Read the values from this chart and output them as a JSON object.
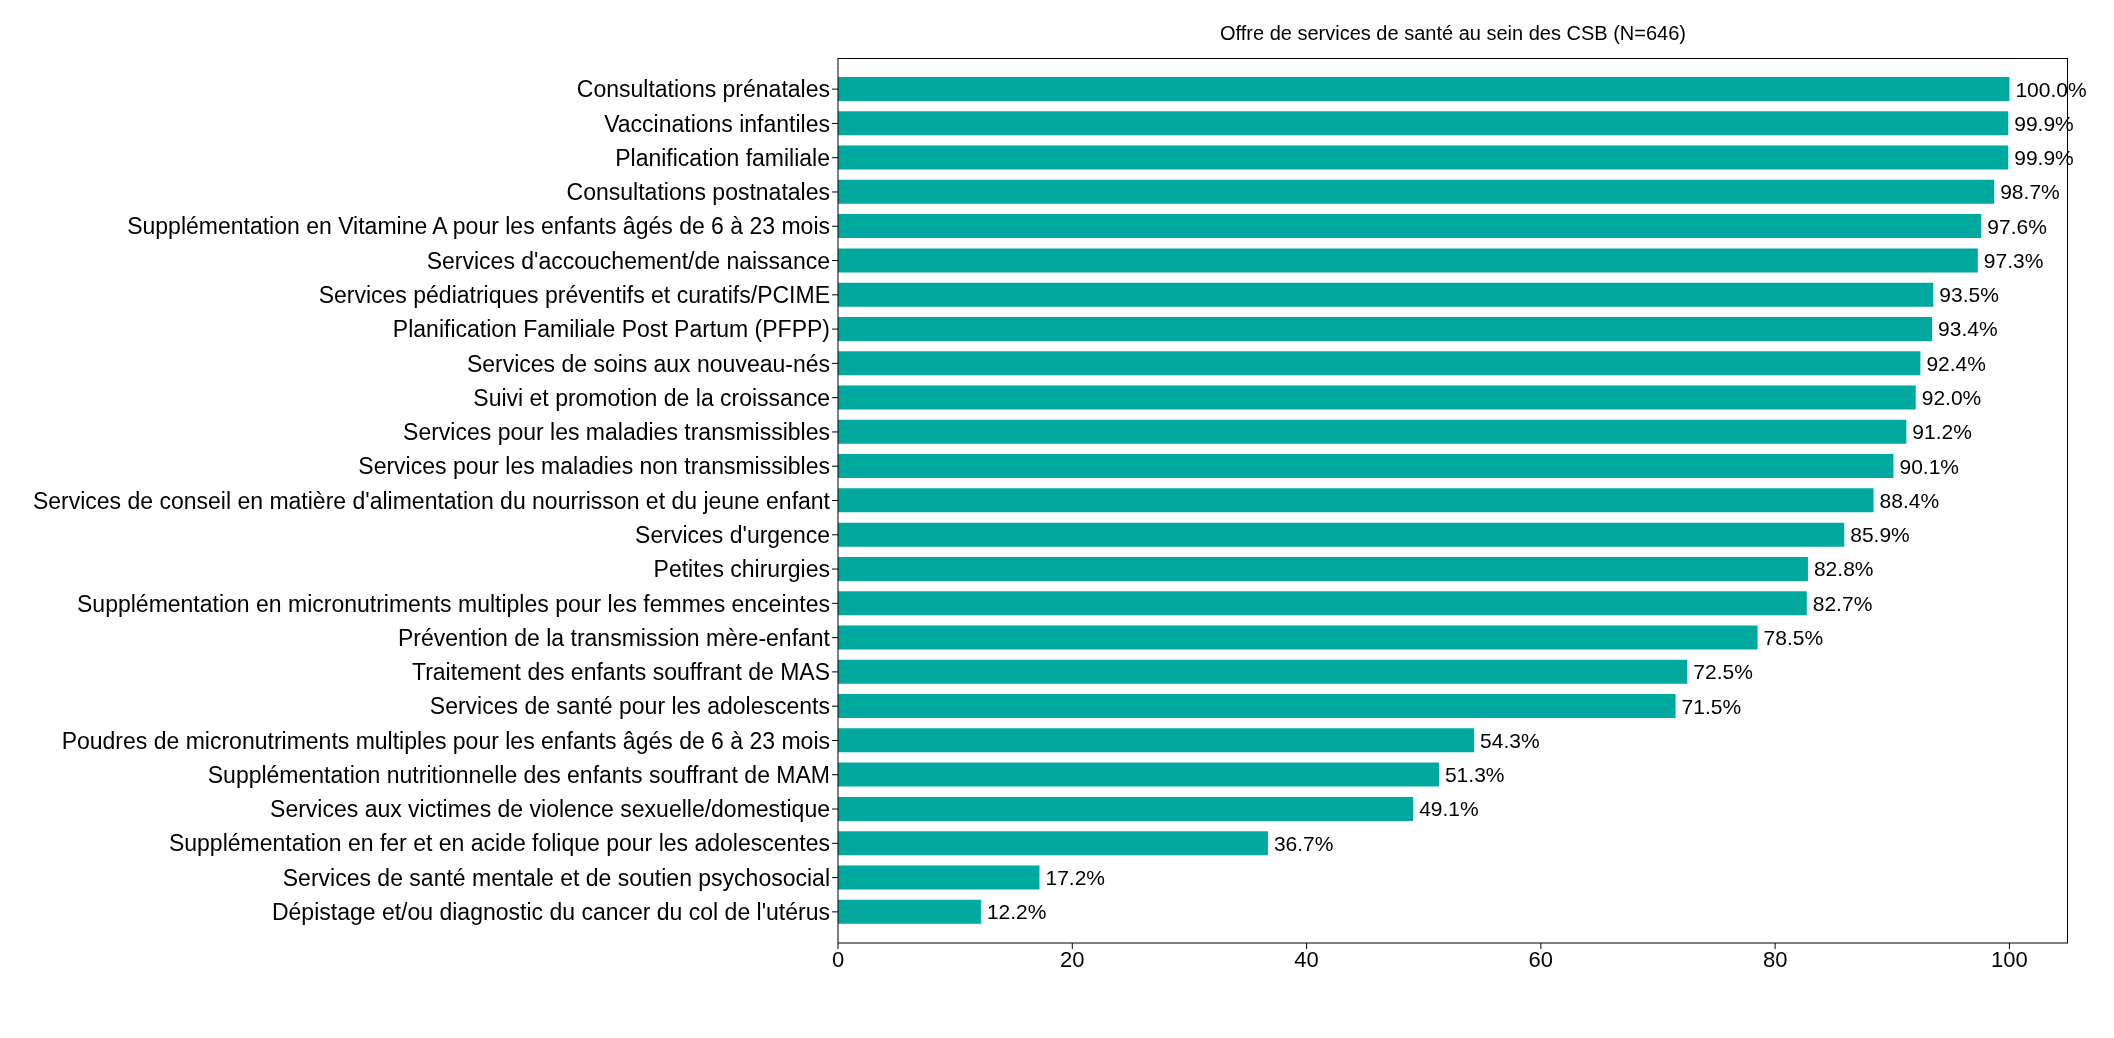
{
  "chart_data": {
    "type": "bar",
    "orientation": "horizontal",
    "title": "Offre de services de santé au sein des CSB (N=646)",
    "categories": [
      "Consultations prénatales",
      "Vaccinations infantiles",
      "Planification familiale",
      "Consultations postnatales",
      "Supplémentation en Vitamine A pour les enfants âgés de 6 à 23 mois",
      "Services d'accouchement/de naissance",
      "Services pédiatriques préventifs et curatifs/PCIME",
      "Planification Familiale Post Partum (PFPP)",
      "Services de soins aux nouveau-nés",
      "Suivi et promotion de la croissance",
      "Services pour les maladies transmissibles",
      "Services pour les maladies non transmissibles",
      "Services de conseil en matière d'alimentation du nourrisson et du jeune enfant",
      "Services d'urgence",
      "Petites chirurgies",
      "Supplémentation en micronutriments multiples pour les femmes enceintes",
      "Prévention de la transmission mère-enfant",
      "Traitement des enfants souffrant de MAS",
      "Services de santé pour les adolescents",
      "Poudres de micronutriments multiples pour les enfants âgés de 6 à 23 mois",
      "Supplémentation nutritionnelle des enfants souffrant de MAM",
      "Services aux victimes de violence sexuelle/domestique",
      "Supplémentation en fer et en acide folique pour les adolescentes",
      "Services de santé mentale et de soutien psychosocial",
      "Dépistage et/ou diagnostic du cancer du col de l'utérus"
    ],
    "values": [
      100.0,
      99.9,
      99.9,
      98.7,
      97.6,
      97.3,
      93.5,
      93.4,
      92.4,
      92.0,
      91.2,
      90.1,
      88.4,
      85.9,
      82.8,
      82.7,
      78.5,
      72.5,
      71.5,
      54.3,
      51.3,
      49.1,
      36.7,
      17.2,
      12.2
    ],
    "value_labels": [
      "100.0%",
      "99.9%",
      "99.9%",
      "98.7%",
      "97.6%",
      "97.3%",
      "93.5%",
      "93.4%",
      "92.4%",
      "92.0%",
      "91.2%",
      "90.1%",
      "88.4%",
      "85.9%",
      "82.8%",
      "82.7%",
      "78.5%",
      "72.5%",
      "71.5%",
      "54.3%",
      "51.3%",
      "49.1%",
      "36.7%",
      "17.2%",
      "12.2%"
    ],
    "color": "#00a89d",
    "xlim": [
      0,
      105
    ],
    "xticks": [
      0,
      20,
      40,
      60,
      80,
      100
    ]
  }
}
